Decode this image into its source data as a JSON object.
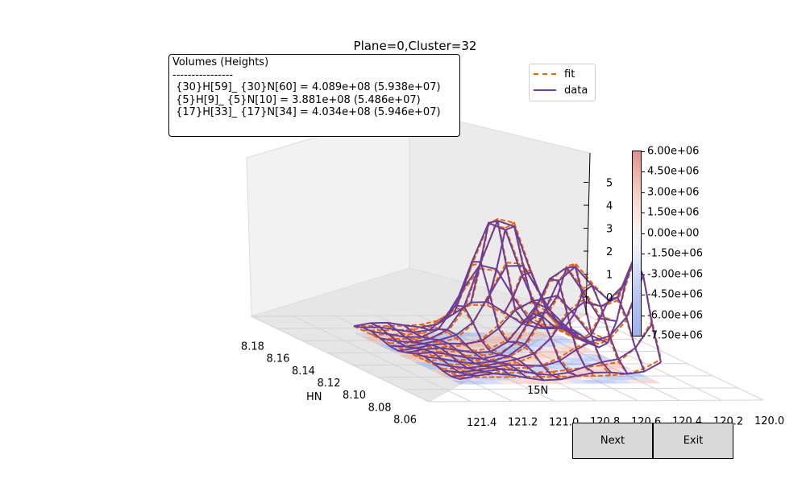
{
  "title": "Plane=0,Cluster=32",
  "volumes": {
    "header": "Volumes (Heights)",
    "divider": "----------------",
    "lines": [
      " {30}H[59]_ {30}N[60] = 4.089e+08 (5.938e+07)",
      " {5}H[9]_ {5}N[10] = 3.881e+08 (5.486e+07)",
      " {17}H[33]_ {17}N[34] = 4.034e+08 (5.946e+07)"
    ]
  },
  "legend": [
    {
      "label": "fit",
      "color": "#e8640e",
      "style": "dashed"
    },
    {
      "label": "data",
      "color": "#6a3d9a",
      "style": "solid"
    }
  ],
  "colorbar": {
    "ticks": [
      "6.00e+06",
      "4.50e+06",
      "3.00e+06",
      "1.50e+06",
      "0.00e+00",
      "-1.50e+06",
      "-3.00e+06",
      "-4.50e+06",
      "-6.00e+06",
      "-7.50e+06"
    ],
    "min": -7500000,
    "max": 6000000
  },
  "buttons": {
    "next": "Next",
    "exit": "Exit"
  },
  "chart_data": {
    "type": "surface-wireframe-3d",
    "title": "Plane=0,Cluster=32",
    "xlabel": "HN",
    "ylabel": "15N",
    "x_ticks": [
      "8.18",
      "8.16",
      "8.14",
      "8.12",
      "8.10",
      "8.08",
      "8.06"
    ],
    "y_ticks": [
      "120.0",
      "120.2",
      "120.4",
      "120.6",
      "120.8",
      "121.0",
      "121.2",
      "121.4"
    ],
    "z_ticks": [
      "0",
      "1",
      "2",
      "3",
      "4",
      "5"
    ],
    "peaks": [
      {
        "hn": 8.14,
        "n15": 120.6,
        "height": 5.5
      },
      {
        "hn": 8.1,
        "n15": 120.2,
        "height": 6.0
      },
      {
        "hn": 8.11,
        "n15": 120.5,
        "height": 4.2
      }
    ],
    "series": [
      {
        "name": "fit",
        "color": "#e8640e",
        "style": "dashed"
      },
      {
        "name": "data",
        "color": "#6a3d9a",
        "style": "solid"
      }
    ],
    "grid": true,
    "legend_position": "top-right"
  }
}
